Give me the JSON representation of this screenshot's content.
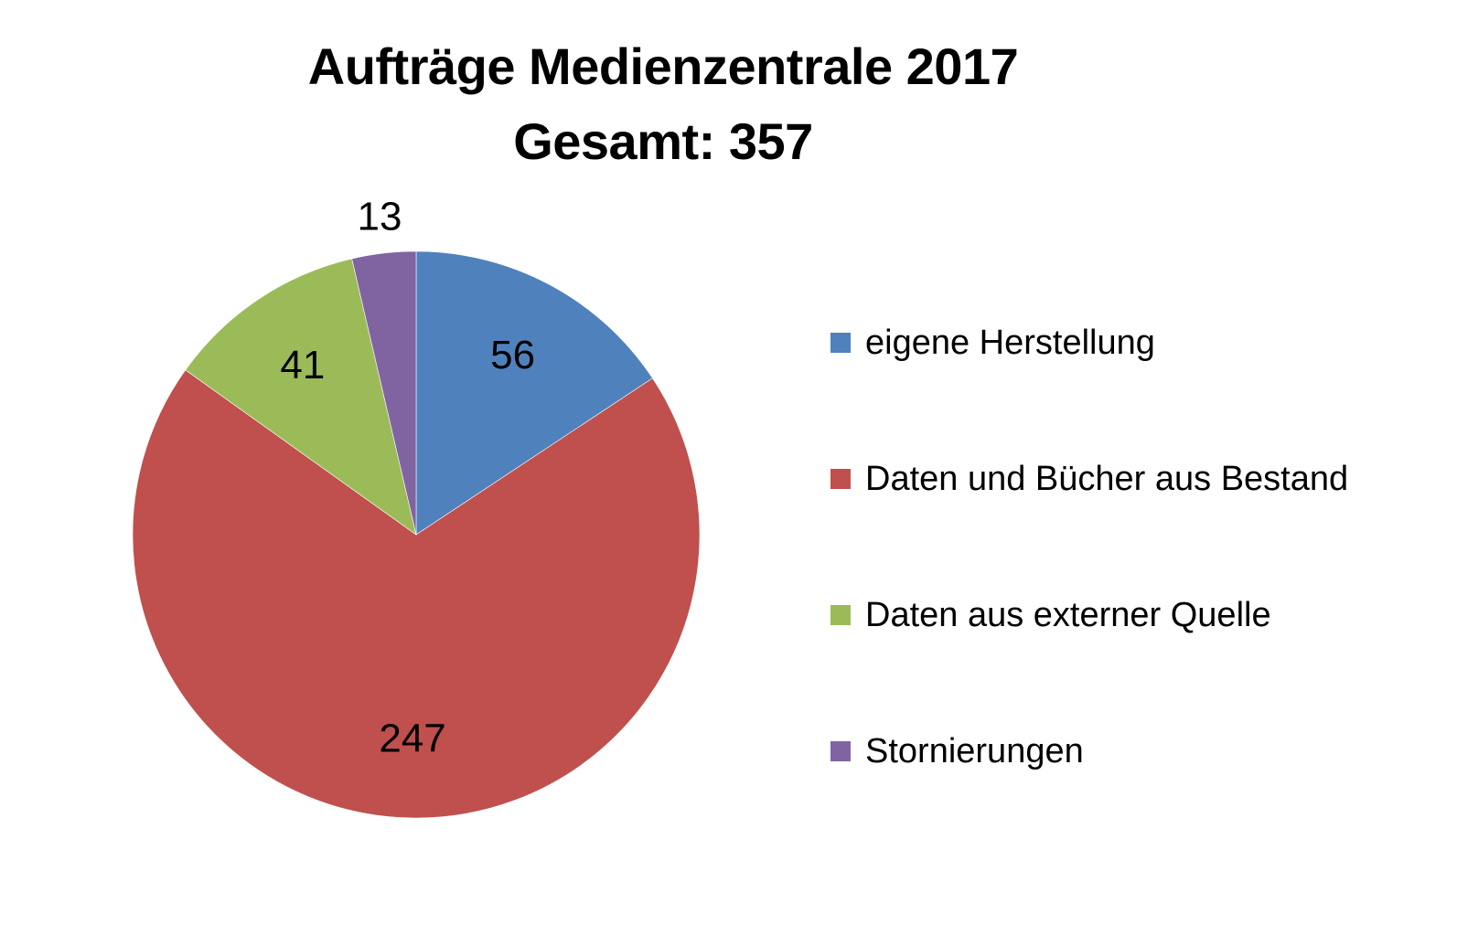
{
  "chart_data": {
    "type": "pie",
    "title": "Aufträge Medienzentrale 2017",
    "subtitle": "Gesamt: 357",
    "start_angle_deg": 0,
    "direction": "clockwise",
    "legend_position": "right",
    "slices": [
      {
        "label": "eigene Herstellung",
        "value": 56,
        "display": "56",
        "color": "#4F81BD"
      },
      {
        "label": "Daten und Bücher aus Bestand",
        "value": 247,
        "display": "247",
        "color": "#C0504D"
      },
      {
        "label": "Daten aus externer Quelle",
        "value": 41,
        "display": "41",
        "color": "#9BBB59"
      },
      {
        "label": "Stornierungen",
        "value": 13,
        "display": "13",
        "color": "#8064A2"
      }
    ]
  }
}
